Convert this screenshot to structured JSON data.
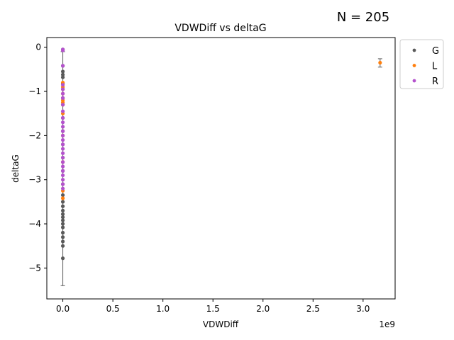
{
  "count_label": "N = 205",
  "chart_data": {
    "type": "scatter",
    "title": "VDWDiff vs deltaG",
    "xlabel": "VDWDiff",
    "ylabel": "deltaG",
    "x_offset_label": "1e9",
    "xlim": [
      -0.16,
      3.32
    ],
    "ylim": [
      -5.7,
      0.22
    ],
    "x_scale": 1000000000,
    "x_ticks": [
      0,
      0.5,
      1.0,
      1.5,
      2.0,
      2.5,
      3.0
    ],
    "x_tick_labels": [
      "0.0",
      "0.5",
      "1.0",
      "1.5",
      "2.0",
      "2.5",
      "3.0"
    ],
    "y_ticks": [
      0,
      -1,
      -2,
      -3,
      -4,
      -5
    ],
    "y_tick_labels": [
      "0",
      "−1",
      "−2",
      "−3",
      "−4",
      "−5"
    ],
    "grid": false,
    "legend_position": "outside-upper-right",
    "series": [
      {
        "name": "G",
        "color": "#5a5a5a",
        "points": [
          {
            "x": 0,
            "y": -0.05
          },
          {
            "x": 0,
            "y": -0.42
          },
          {
            "x": 0,
            "y": -0.55
          },
          {
            "x": 0,
            "y": -0.62
          },
          {
            "x": 0,
            "y": -0.68
          },
          {
            "x": 0,
            "y": -0.82
          },
          {
            "x": 0,
            "y": -0.95
          },
          {
            "x": 0,
            "y": -1.15
          },
          {
            "x": 0,
            "y": -1.3
          },
          {
            "x": 0,
            "y": -1.6
          },
          {
            "x": 0,
            "y": -1.9
          },
          {
            "x": 0,
            "y": -2.2
          },
          {
            "x": 0,
            "y": -2.5
          },
          {
            "x": 0,
            "y": -2.8
          },
          {
            "x": 0,
            "y": -3.1
          },
          {
            "x": 0,
            "y": -3.35
          },
          {
            "x": 0,
            "y": -3.5
          },
          {
            "x": 0,
            "y": -3.6
          },
          {
            "x": 0,
            "y": -3.7
          },
          {
            "x": 0,
            "y": -3.78
          },
          {
            "x": 0,
            "y": -3.85
          },
          {
            "x": 0,
            "y": -3.92
          },
          {
            "x": 0,
            "y": -4.0
          },
          {
            "x": 0,
            "y": -4.08
          },
          {
            "x": 0,
            "y": -4.2
          },
          {
            "x": 0,
            "y": -4.3
          },
          {
            "x": 0,
            "y": -4.4
          },
          {
            "x": 0,
            "y": -4.5
          },
          {
            "x": 0,
            "y": -4.78
          }
        ],
        "error_bars": [
          {
            "x": 0,
            "y": -2.75,
            "low": -5.4,
            "high": -0.1
          },
          {
            "x": 3.17,
            "y": -0.35,
            "low": -0.45,
            "high": -0.26
          }
        ]
      },
      {
        "name": "L",
        "color": "#ff7f0e",
        "points": [
          {
            "x": 0,
            "y": -0.8
          },
          {
            "x": 0,
            "y": -0.9
          },
          {
            "x": 0,
            "y": -1.05
          },
          {
            "x": 0,
            "y": -1.2
          },
          {
            "x": 0,
            "y": -1.25
          },
          {
            "x": 0,
            "y": -1.3
          },
          {
            "x": 0,
            "y": -1.5
          },
          {
            "x": 0,
            "y": -2.0
          },
          {
            "x": 0,
            "y": -2.6
          },
          {
            "x": 0,
            "y": -3.25
          },
          {
            "x": 0,
            "y": -3.42
          },
          {
            "x": 3.17,
            "y": -0.35
          }
        ]
      },
      {
        "name": "R",
        "color": "#b452cd",
        "points": [
          {
            "x": 0,
            "y": -0.05
          },
          {
            "x": 0,
            "y": -0.07
          },
          {
            "x": 0,
            "y": -0.42
          },
          {
            "x": 0,
            "y": -0.85
          },
          {
            "x": 0,
            "y": -0.95
          },
          {
            "x": 0,
            "y": -1.05
          },
          {
            "x": 0,
            "y": -1.15
          },
          {
            "x": 0,
            "y": -1.3
          },
          {
            "x": 0,
            "y": -1.45
          },
          {
            "x": 0,
            "y": -1.6
          },
          {
            "x": 0,
            "y": -1.7
          },
          {
            "x": 0,
            "y": -1.8
          },
          {
            "x": 0,
            "y": -1.9
          },
          {
            "x": 0,
            "y": -2.0
          },
          {
            "x": 0,
            "y": -2.1
          },
          {
            "x": 0,
            "y": -2.2
          },
          {
            "x": 0,
            "y": -2.3
          },
          {
            "x": 0,
            "y": -2.4
          },
          {
            "x": 0,
            "y": -2.5
          },
          {
            "x": 0,
            "y": -2.6
          },
          {
            "x": 0,
            "y": -2.7
          },
          {
            "x": 0,
            "y": -2.8
          },
          {
            "x": 0,
            "y": -2.9
          },
          {
            "x": 0,
            "y": -3.0
          },
          {
            "x": 0,
            "y": -3.1
          },
          {
            "x": 0,
            "y": -3.2
          }
        ]
      }
    ]
  }
}
